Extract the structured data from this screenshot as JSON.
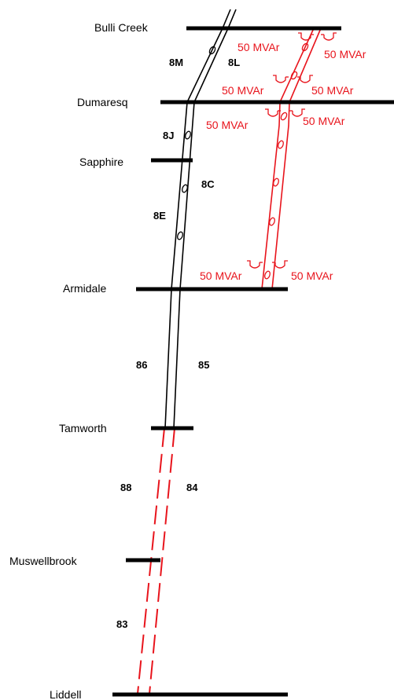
{
  "substations": {
    "bulli_creek": "Bulli Creek",
    "dumaresq": "Dumaresq",
    "sapphire": "Sapphire",
    "armidale": "Armidale",
    "tamworth": "Tamworth",
    "muswellbrook": "Muswellbrook",
    "liddell": "Liddell"
  },
  "lines": {
    "l_8m": "8M",
    "l_8l": "8L",
    "l_8j": "8J",
    "l_8c": "8C",
    "l_8e": "8E",
    "l_86": "86",
    "l_85": "85",
    "l_88": "88",
    "l_84": "84",
    "l_83": "83"
  },
  "reactors": {
    "bulli_left": "50 MVAr",
    "bulli_right": "50 MVAr",
    "dum_top_left": "50 MVAr",
    "dum_top_right": "50 MVAr",
    "dum_bot_left": "50 MVAr",
    "dum_bot_right": "50 MVAr",
    "arm_left": "50 MVAr",
    "arm_right": "50 MVAr"
  },
  "colors": {
    "existing_line": "#000000",
    "new_line": "#e8141c"
  }
}
